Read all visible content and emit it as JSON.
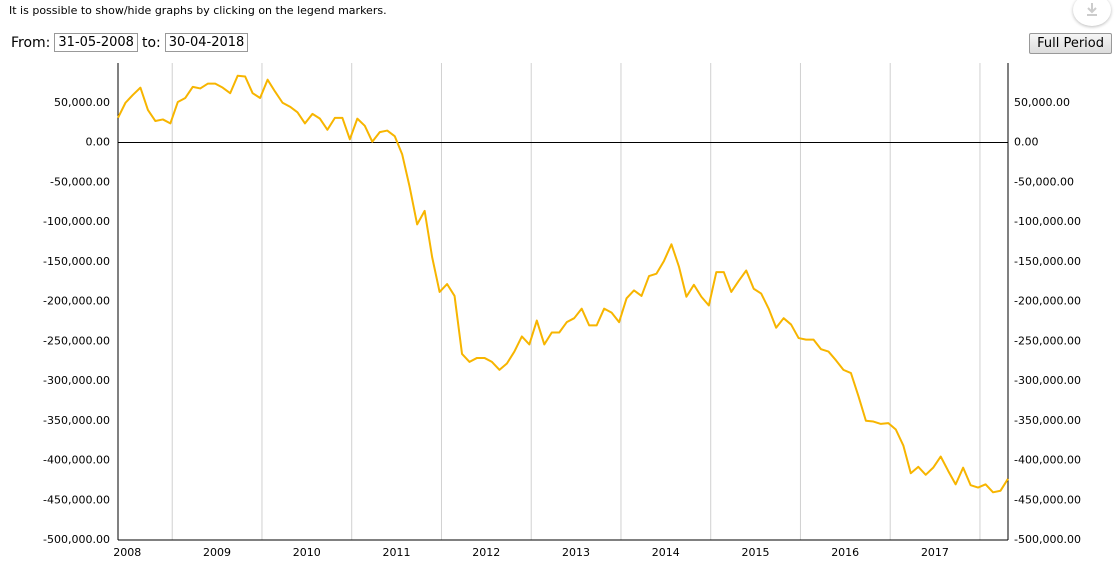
{
  "ui": {
    "note": "It is possible to show/hide graphs by clicking on the legend markers.",
    "from_label": "From:",
    "from_date": "31-05-2008",
    "to_label": "to:",
    "to_date": "30-04-2018",
    "button": "Full Period"
  },
  "chart_data": {
    "type": "line",
    "x": [
      "2008-05",
      "2008-06",
      "2008-07",
      "2008-08",
      "2008-09",
      "2008-10",
      "2008-11",
      "2008-12",
      "2009-01",
      "2009-02",
      "2009-03",
      "2009-04",
      "2009-05",
      "2009-06",
      "2009-07",
      "2009-08",
      "2009-09",
      "2009-10",
      "2009-11",
      "2009-12",
      "2010-01",
      "2010-02",
      "2010-03",
      "2010-04",
      "2010-05",
      "2010-06",
      "2010-07",
      "2010-08",
      "2010-09",
      "2010-10",
      "2010-11",
      "2010-12",
      "2011-01",
      "2011-02",
      "2011-03",
      "2011-04",
      "2011-05",
      "2011-06",
      "2011-07",
      "2011-08",
      "2011-09",
      "2011-10",
      "2011-11",
      "2011-12",
      "2012-01",
      "2012-02",
      "2012-03",
      "2012-04",
      "2012-05",
      "2012-06",
      "2012-07",
      "2012-08",
      "2012-09",
      "2012-10",
      "2012-11",
      "2012-12",
      "2013-01",
      "2013-02",
      "2013-03",
      "2013-04",
      "2013-05",
      "2013-06",
      "2013-07",
      "2013-08",
      "2013-09",
      "2013-10",
      "2013-11",
      "2013-12",
      "2014-01",
      "2014-02",
      "2014-03",
      "2014-04",
      "2014-05",
      "2014-06",
      "2014-07",
      "2014-08",
      "2014-09",
      "2014-10",
      "2014-11",
      "2014-12",
      "2015-01",
      "2015-02",
      "2015-03",
      "2015-04",
      "2015-05",
      "2015-06",
      "2015-07",
      "2015-08",
      "2015-09",
      "2015-10",
      "2015-11",
      "2015-12",
      "2016-01",
      "2016-02",
      "2016-03",
      "2016-04",
      "2016-05",
      "2016-06",
      "2016-07",
      "2016-08",
      "2016-09",
      "2016-10",
      "2016-11",
      "2016-12",
      "2017-01",
      "2017-02",
      "2017-03",
      "2017-04",
      "2017-05",
      "2017-06",
      "2017-07",
      "2017-08",
      "2017-09",
      "2017-10",
      "2017-11",
      "2017-12",
      "2018-01",
      "2018-02",
      "2018-03",
      "2018-04"
    ],
    "series": [
      {
        "color": "#f7b500",
        "values": [
          31000,
          50000,
          60000,
          69000,
          41000,
          27000,
          29000,
          24000,
          51000,
          56000,
          70000,
          68000,
          74000,
          74000,
          69000,
          62000,
          84000,
          83000,
          62000,
          56000,
          79000,
          64000,
          50000,
          45000,
          38000,
          24000,
          36000,
          30000,
          16000,
          31000,
          31000,
          4000,
          30000,
          21000,
          1000,
          13000,
          15000,
          8000,
          -15000,
          -56000,
          -103000,
          -86000,
          -144000,
          -188000,
          -178000,
          -193000,
          -266000,
          -276000,
          -271000,
          -271000,
          -276000,
          -286000,
          -278000,
          -263000,
          -244000,
          -254000,
          -224000,
          -254000,
          -239000,
          -239000,
          -226000,
          -221000,
          -209000,
          -230000,
          -230000,
          -209000,
          -214000,
          -226000,
          -196000,
          -186000,
          -193000,
          -168000,
          -165000,
          -149000,
          -128000,
          -156000,
          -194000,
          -179000,
          -194000,
          -205000,
          -163000,
          -163000,
          -188000,
          -174000,
          -161000,
          -184000,
          -190000,
          -209000,
          -233000,
          -221000,
          -229000,
          -246000,
          -248000,
          -248000,
          -260000,
          -263000,
          -274000,
          -286000,
          -290000,
          -319000,
          -350000,
          -351000,
          -354000,
          -353000,
          -361000,
          -381000,
          -416000,
          -408000,
          -418000,
          -409000,
          -395000,
          -413000,
          -430000,
          -409000,
          -431000,
          -434000,
          -430000,
          -440000,
          -438000,
          -423000
        ]
      }
    ],
    "ylim": [
      -500000,
      100000
    ],
    "yticks": [
      {
        "value": 50000,
        "label": "50,000.00"
      },
      {
        "value": 0,
        "label": "0.00"
      },
      {
        "value": -50000,
        "label": "-50,000.00"
      },
      {
        "value": -100000,
        "label": "-100,000.00"
      },
      {
        "value": -150000,
        "label": "-150,000.00"
      },
      {
        "value": -200000,
        "label": "-200,000.00"
      },
      {
        "value": -250000,
        "label": "-250,000.00"
      },
      {
        "value": -300000,
        "label": "-300,000.00"
      },
      {
        "value": -350000,
        "label": "-350,000.00"
      },
      {
        "value": -400000,
        "label": "-400,000.00"
      },
      {
        "value": -450000,
        "label": "-450,000.00"
      },
      {
        "value": -500000,
        "label": "-500,000.00"
      }
    ],
    "xticks": [
      "2008",
      "2009",
      "2010",
      "2011",
      "2012",
      "2013",
      "2014",
      "2015",
      "2016",
      "2017"
    ],
    "grid": true
  }
}
